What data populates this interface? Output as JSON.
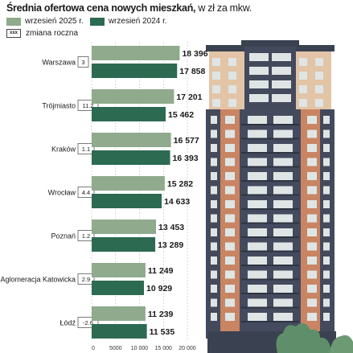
{
  "title": {
    "bold": "Średnia ofertowa cena nowych mieszkań,",
    "normal": " w zł za mkw."
  },
  "legend": {
    "s2025": "wrzesień 2025 r.",
    "s2024": "wrzesień 2024 r.",
    "change_label": "zmiana roczna",
    "change_box": "xxx"
  },
  "colors": {
    "s2025": "#8faa8c",
    "s2024": "#2c6a52",
    "grid": "#bdbdbd",
    "box_border": "#444444"
  },
  "chart_data": {
    "type": "bar",
    "orientation": "horizontal",
    "categories": [
      "Warszawa",
      "Trójmiasto",
      "Kraków",
      "Wrocław",
      "Poznań",
      "Aglomeracja Katowicka",
      "Łódź"
    ],
    "series": [
      {
        "name": "wrzesień 2025 r.",
        "values": [
          18396,
          17201,
          16577,
          15282,
          13453,
          11249,
          11239
        ],
        "labels": [
          "18 396",
          "17 201",
          "16 577",
          "15 282",
          "13 453",
          "11 249",
          "11 239"
        ]
      },
      {
        "name": "wrzesień 2024 r.",
        "values": [
          17858,
          15462,
          16393,
          14633,
          13289,
          10929,
          11535
        ],
        "labels": [
          "17 858",
          "15 462",
          "16 393",
          "14 633",
          "13 289",
          "10 929",
          "11 535"
        ]
      }
    ],
    "annual_change": [
      "3",
      "11.2",
      "1.1",
      "4.4",
      "1.2",
      "2.9",
      "-2.6"
    ],
    "x_ticks": [
      "0",
      "5000",
      "10 000",
      "15 000",
      "20 000"
    ],
    "xlim": [
      0,
      20000
    ],
    "grid": true,
    "legend_position": "top-left"
  }
}
